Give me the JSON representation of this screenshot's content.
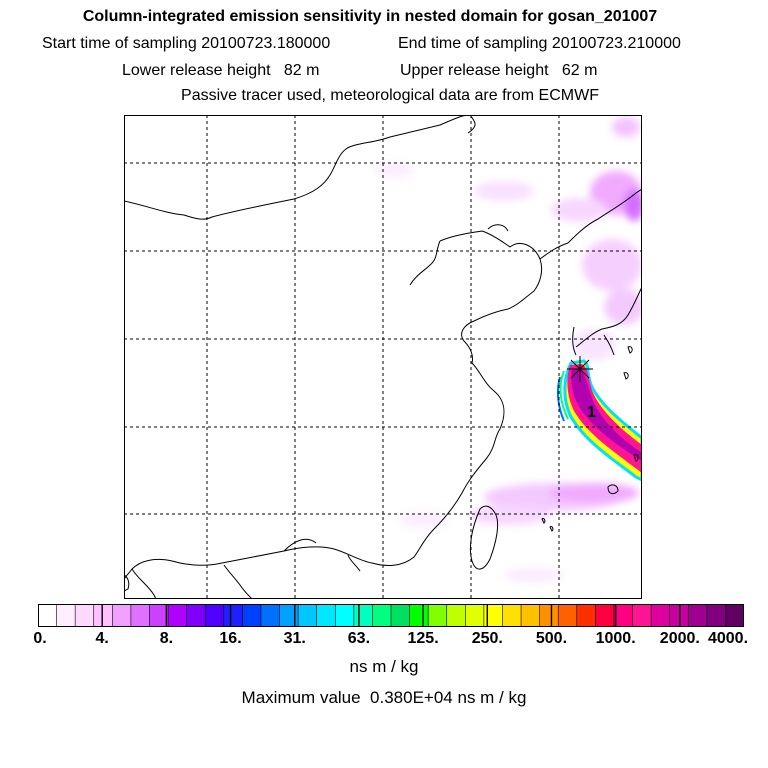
{
  "header": {
    "title": "Column-integrated emission sensitivity in nested domain for gosan_201007",
    "start_label": "Start time of sampling",
    "start_value": "20100723.180000",
    "end_label": "End time of sampling",
    "end_value": "20100723.210000",
    "lower_label": "Lower release height",
    "lower_value": "82 m",
    "upper_label": "Upper release height",
    "upper_value": "62 m",
    "note": "Passive tracer used, meteorological data are from ECMWF"
  },
  "map": {
    "marker_label": "1",
    "plume_color_core": "#a000a0",
    "plume_color_mid": "#ff1493",
    "land_outline_color": "#000000"
  },
  "colorbar": {
    "ticks": [
      "0.",
      "4.",
      "8.",
      "16.",
      "31.",
      "63.",
      "125.",
      "250.",
      "500.",
      "1000.",
      "2000.",
      "4000."
    ],
    "colors": [
      "#ffffff",
      "#ffeeff",
      "#ffd8ff",
      "#ffc0ff",
      "#f0a0ff",
      "#e070ff",
      "#cc40ff",
      "#b000ff",
      "#8000ff",
      "#5000ff",
      "#2020ff",
      "#0040ff",
      "#0070ff",
      "#00a0ff",
      "#00c8ff",
      "#00e8ff",
      "#00ffff",
      "#00ffc0",
      "#00ff80",
      "#00e060",
      "#00ff00",
      "#80ff00",
      "#c0ff00",
      "#e0ff00",
      "#ffff00",
      "#ffe000",
      "#ffc000",
      "#ff9000",
      "#ff6000",
      "#ff3000",
      "#ff0040",
      "#ff0080",
      "#ff1493",
      "#e000a0",
      "#c800a0",
      "#a00090",
      "#800080",
      "#600060"
    ],
    "units": "ns m / kg",
    "max_label": "Maximum value",
    "max_value": "0.380E+04 ns m / kg"
  }
}
